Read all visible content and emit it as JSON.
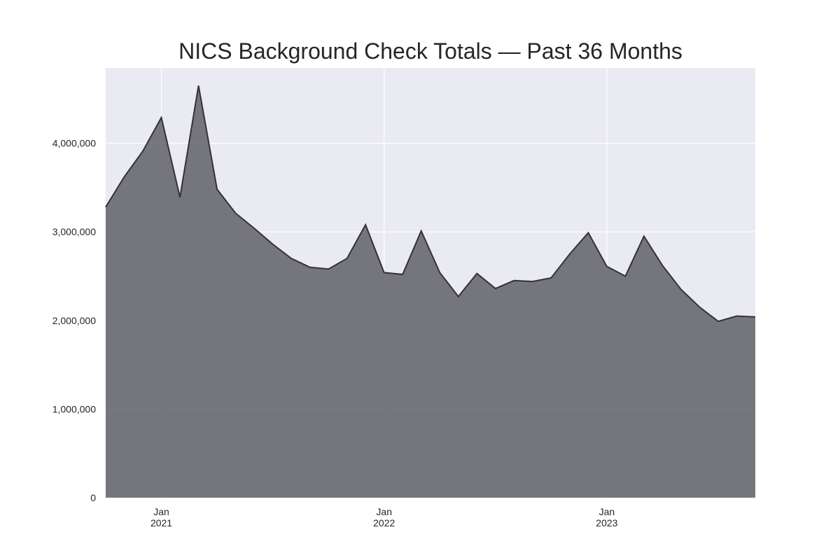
{
  "chart_data": {
    "type": "area",
    "title": "NICS Background Check Totals — Past 36 Months",
    "xlabel": "",
    "ylabel": "",
    "x_start": "2020-10",
    "x_end": "2023-09",
    "x": [
      "2020-10",
      "2020-11",
      "2020-12",
      "2021-01",
      "2021-02",
      "2021-03",
      "2021-04",
      "2021-05",
      "2021-06",
      "2021-07",
      "2021-08",
      "2021-09",
      "2021-10",
      "2021-11",
      "2021-12",
      "2022-01",
      "2022-02",
      "2022-03",
      "2022-04",
      "2022-05",
      "2022-06",
      "2022-07",
      "2022-08",
      "2022-09",
      "2022-10",
      "2022-11",
      "2022-12",
      "2023-01",
      "2023-02",
      "2023-03",
      "2023-04",
      "2023-05",
      "2023-06",
      "2023-07",
      "2023-08",
      "2023-09"
    ],
    "series": [
      {
        "name": "",
        "values": [
          3280000,
          3620000,
          3910000,
          4290000,
          3390000,
          4650000,
          3480000,
          3210000,
          3040000,
          2860000,
          2700000,
          2600000,
          2580000,
          2700000,
          3080000,
          2540000,
          2520000,
          3010000,
          2540000,
          2270000,
          2530000,
          2360000,
          2450000,
          2440000,
          2480000,
          2750000,
          2990000,
          2610000,
          2500000,
          2950000,
          2620000,
          2350000,
          2150000,
          1990000,
          2050000,
          2040000
        ]
      }
    ],
    "ylim": [
      0,
      4850000
    ],
    "yticks": [
      0,
      1000000,
      2000000,
      3000000,
      4000000
    ],
    "ytick_labels": [
      "0",
      "1,000,000",
      "2,000,000",
      "3,000,000",
      "4,000,000"
    ],
    "xticks": [
      {
        "x": "2021-01",
        "label_month": "Jan",
        "label_year": "2021"
      },
      {
        "x": "2022-01",
        "label_month": "Jan",
        "label_year": "2022"
      },
      {
        "x": "2023-01",
        "label_month": "Jan",
        "label_year": "2023"
      }
    ],
    "grid": true,
    "legend": "none",
    "colors": {
      "plot_background": "#eaeaf2",
      "grid": "#ffffff",
      "fill": "#58585e",
      "line": "#333333"
    }
  }
}
